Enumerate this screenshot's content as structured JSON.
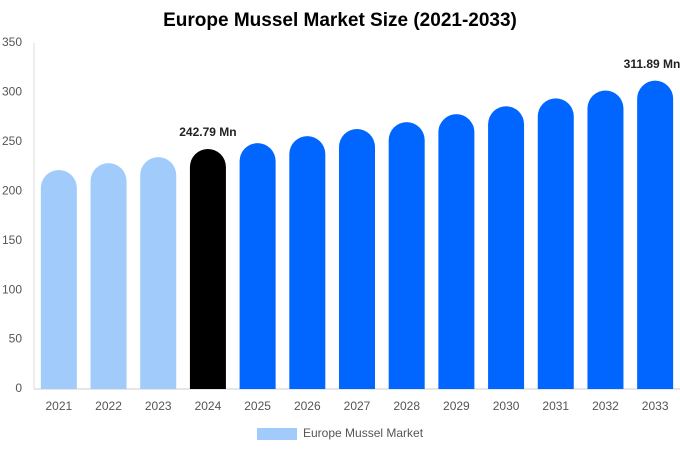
{
  "chart_data": {
    "type": "bar",
    "title": "Europe Mussel Market Size (2021-2033)",
    "categories": [
      "2021",
      "2022",
      "2023",
      "2024",
      "2025",
      "2026",
      "2027",
      "2028",
      "2029",
      "2030",
      "2031",
      "2032",
      "2033"
    ],
    "series": [
      {
        "name": "Europe Mussel Market",
        "color": "#a0cbfb",
        "values": [
          221.5,
          228.5,
          234.6,
          242.79,
          248.7,
          255.8,
          263,
          270,
          278,
          286,
          294,
          302,
          311.89
        ],
        "value_labels": [
          null,
          null,
          null,
          "242.79 Mn",
          null,
          null,
          null,
          null,
          null,
          null,
          null,
          null,
          "311.89 Mn"
        ],
        "colors": [
          "#a0cbfb",
          "#a0cbfb",
          "#a0cbfb",
          "#000000",
          "#0066ff",
          "#0066ff",
          "#0066ff",
          "#0066ff",
          "#0066ff",
          "#0066ff",
          "#0066ff",
          "#0066ff",
          "#0066ff"
        ]
      }
    ],
    "ylim": [
      0,
      350
    ],
    "yticks": [
      0,
      50,
      100,
      150,
      200,
      250,
      300,
      350
    ],
    "grid": false
  }
}
